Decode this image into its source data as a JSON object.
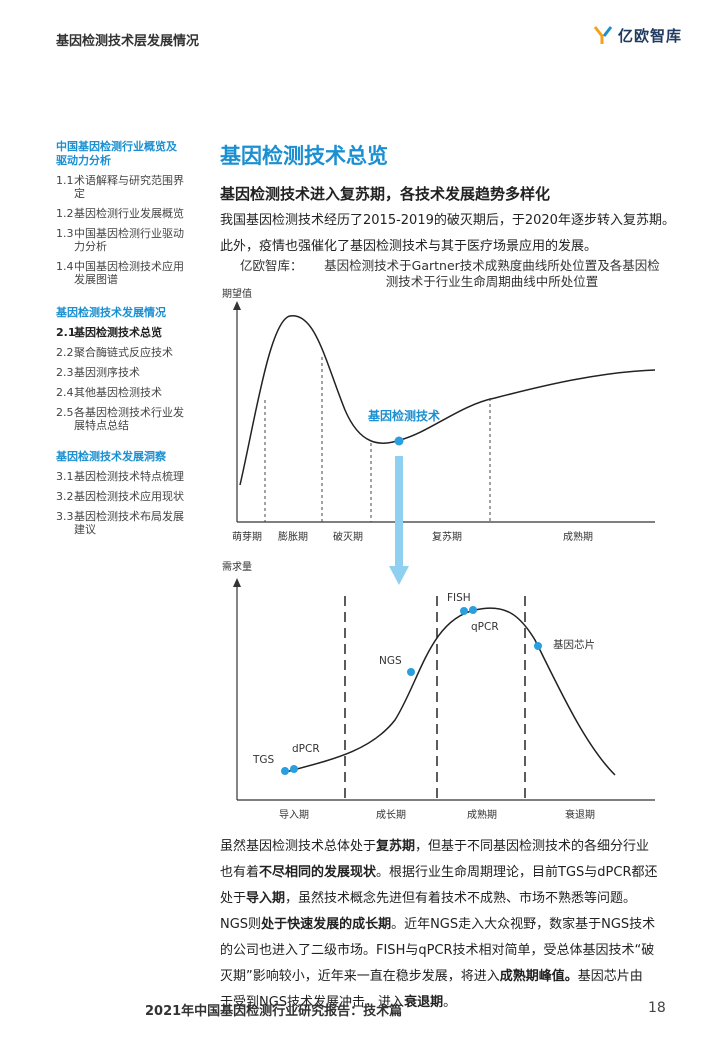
{
  "header": {
    "title": "基因检测技术层发展情况",
    "logo_text": "亿欧智库"
  },
  "sidebar": {
    "sections": [
      {
        "title_lines": [
          "中国基因检测行业概览及",
          "驱动力分析"
        ],
        "items": [
          {
            "num": "1.1",
            "lines": [
              "术语解释与研究范围界",
              "定"
            ]
          },
          {
            "num": "1.2",
            "lines": [
              "基因检测行业发展概览"
            ]
          },
          {
            "num": "1.3",
            "lines": [
              "中国基因检测行业驱动",
              "力分析"
            ]
          },
          {
            "num": "1.4",
            "lines": [
              "中国基因检测技术应用",
              "发展图谱"
            ]
          }
        ]
      },
      {
        "title_lines": [
          "基因检测技术发展情况"
        ],
        "items": [
          {
            "num": "2.1",
            "lines": [
              "基因检测技术总览"
            ],
            "active": true
          },
          {
            "num": "2.2",
            "lines": [
              "聚合酶链式反应技术"
            ]
          },
          {
            "num": "2.3",
            "lines": [
              "基因测序技术"
            ]
          },
          {
            "num": "2.4",
            "lines": [
              "其他基因检测技术"
            ]
          },
          {
            "num": "2.5",
            "lines": [
              "各基因检测技术行业发",
              "展特点总结"
            ]
          }
        ]
      },
      {
        "title_lines": [
          "基因检测技术发展洞察"
        ],
        "items": [
          {
            "num": "3.1",
            "lines": [
              "基因检测技术特点梳理"
            ]
          },
          {
            "num": "3.2",
            "lines": [
              "基因检测技术应用现状"
            ]
          },
          {
            "num": "3.3",
            "lines": [
              "基因检测技术布局发展",
              "建议"
            ]
          }
        ]
      }
    ]
  },
  "main": {
    "title": "基因检测技术总览",
    "subhead": "基因检测技术进入复苏期，各技术发展趋势多样化",
    "intro_lines": [
      "我国基因检测技术经历了2015-2019的破灭期后，于2020年逐步转入复苏期。",
      "此外，疫情也强催化了基因检测技术与其于医疗场景应用的发展。"
    ],
    "caption_source": "亿欧智库：",
    "caption_lines": [
      "基因检测技术于Gartner技术成熟度曲线所处位置及各基因检",
      "测技术于行业生命周期曲线中所处位置"
    ]
  },
  "chart_data": [
    {
      "type": "line",
      "ylabel": "期望值",
      "phases": [
        "萌芽期",
        "膨胀期",
        "破灭期",
        "复苏期",
        "成熟期"
      ],
      "marker_label": "基因检测技术",
      "marker_phase": "复苏期"
    },
    {
      "type": "line",
      "ylabel": "需求量",
      "phases": [
        "导入期",
        "成长期",
        "成熟期",
        "衰退期"
      ],
      "points": [
        {
          "label": "TGS",
          "phase": "导入期"
        },
        {
          "label": "dPCR",
          "phase": "导入期"
        },
        {
          "label": "NGS",
          "phase": "成长期"
        },
        {
          "label": "FISH",
          "phase": "成熟期"
        },
        {
          "label": "qPCR",
          "phase": "成熟期"
        },
        {
          "label": "基因芯片",
          "phase": "衰退期"
        }
      ]
    }
  ],
  "bottom_paragraph": [
    [
      {
        "t": "虽然基因检测技术总体处于"
      },
      {
        "t": "复苏期",
        "b": true
      },
      {
        "t": "，但基于不同基因检测技术的各细分行业"
      }
    ],
    [
      {
        "t": "也有着"
      },
      {
        "t": "不尽相同的发展现状",
        "b": true
      },
      {
        "t": "。根据行业生命周期理论，目前TGS与dPCR都还"
      }
    ],
    [
      {
        "t": "处于"
      },
      {
        "t": "导入期",
        "b": true
      },
      {
        "t": "，虽然技术概念先进但有着技术不成熟、市场不熟悉等问题。"
      }
    ],
    [
      {
        "t": "NGS则"
      },
      {
        "t": "处于快速发展的成长期",
        "b": true
      },
      {
        "t": "。近年NGS走入大众视野，数家基于NGS技术"
      }
    ],
    [
      {
        "t": "的公司也进入了二级市场。FISH与qPCR技术相对简单，受总体基因技术“破"
      }
    ],
    [
      {
        "t": "灭期”影响较小，近年来一直在稳步发展，将进入"
      },
      {
        "t": "成熟期峰值。",
        "b": true
      },
      {
        "t": "基因芯片由"
      }
    ],
    [
      {
        "t": "于受到NGS技术发展冲击，进入"
      },
      {
        "t": "衰退期",
        "b": true
      },
      {
        "t": "。"
      }
    ]
  ],
  "footer": {
    "title": "2021年中国基因检测行业研究报告：技术篇",
    "page": "18"
  },
  "colors": {
    "accent": "#1a8fd1",
    "point": "#2a9fe0",
    "arrow": "#8fd0f0"
  }
}
